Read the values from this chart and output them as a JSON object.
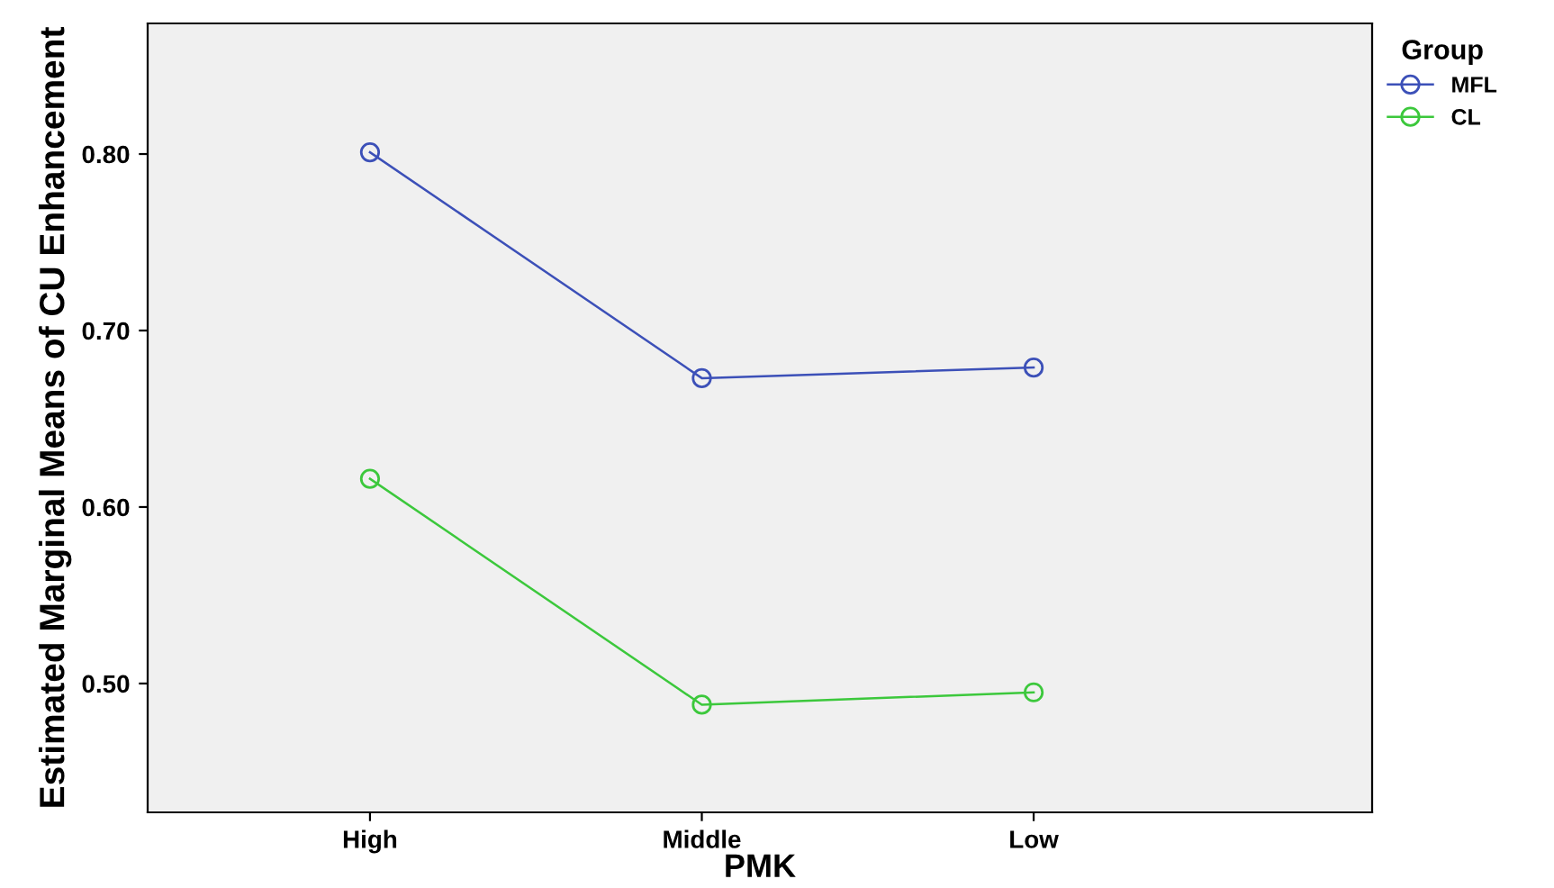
{
  "chart_data": {
    "type": "line",
    "xlabel": "PMK",
    "ylabel": "Estimated Marginal Means of CU Enhancement",
    "legend_title": "Group",
    "categories": [
      "High",
      "Middle",
      "Low"
    ],
    "series": [
      {
        "name": "MFL",
        "color": "#3c50b8",
        "values": [
          0.801,
          0.673,
          0.679
        ]
      },
      {
        "name": "CL",
        "color": "#3cc83c",
        "values": [
          0.616,
          0.488,
          0.495
        ]
      }
    ],
    "ylim": [
      0.427,
      0.874
    ],
    "yticks": [
      {
        "value": 0.5,
        "label": "0.50"
      },
      {
        "value": 0.6,
        "label": "0.60"
      },
      {
        "value": 0.7,
        "label": "0.70"
      },
      {
        "value": 0.8,
        "label": "0.80"
      }
    ],
    "marker": "circle",
    "line_style": "solid",
    "legend": "top right",
    "grid": false
  }
}
